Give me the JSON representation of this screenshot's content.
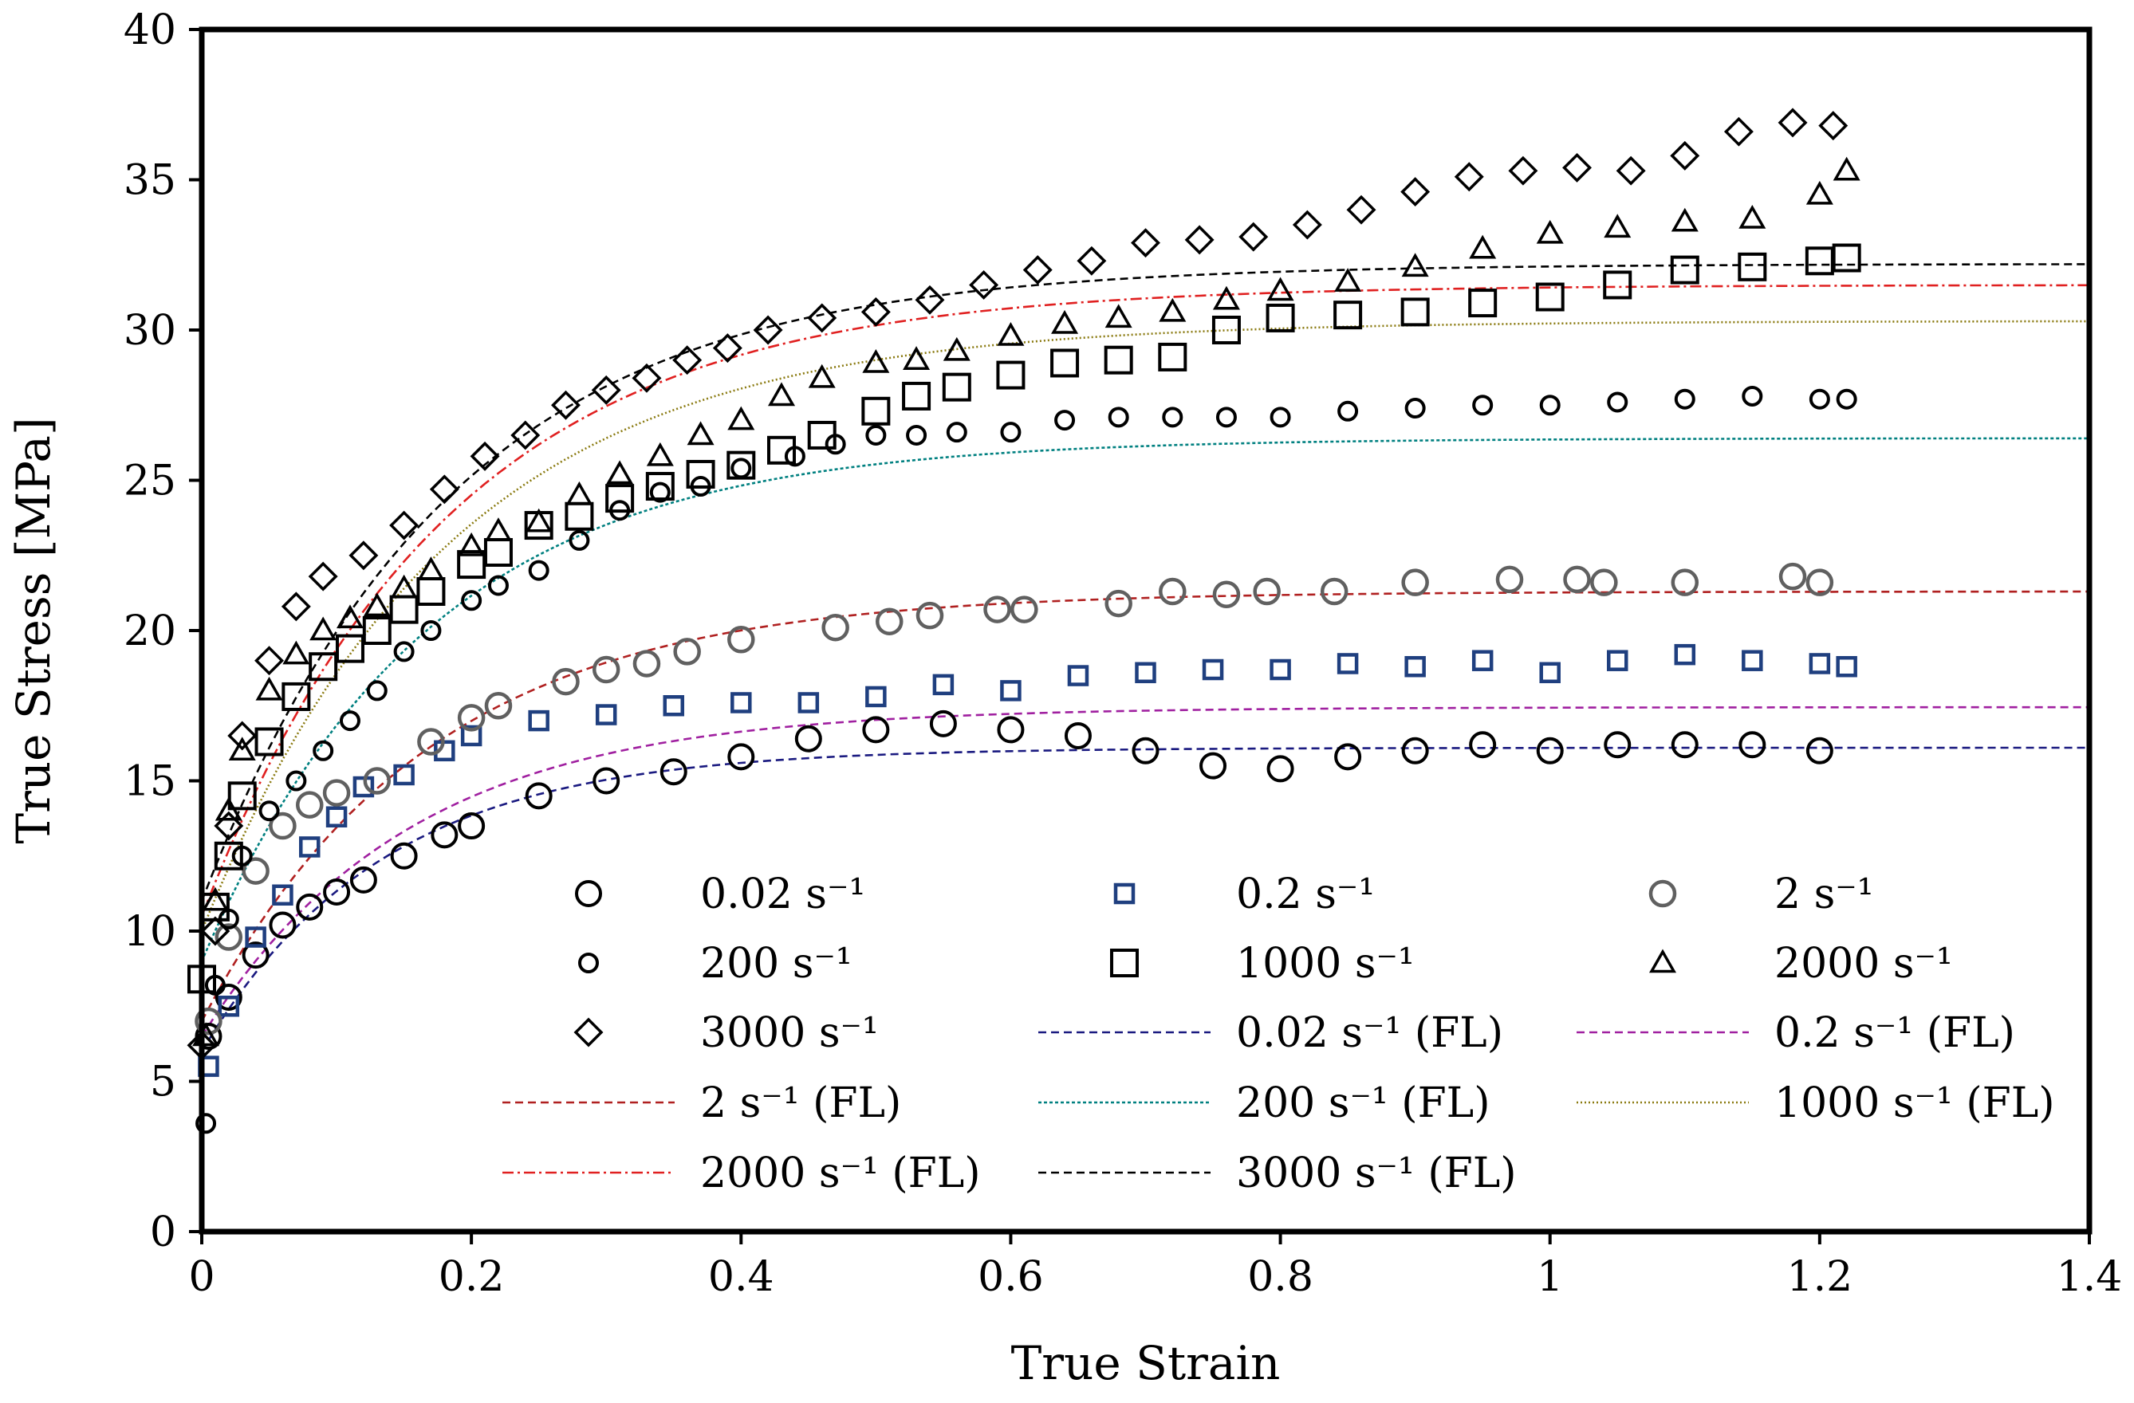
{
  "chart_data": {
    "type": "scatter",
    "xlabel": "True Strain",
    "ylabel": "True Stress [MPa]",
    "xlim": [
      0,
      1.4
    ],
    "ylim": [
      0,
      40
    ],
    "xticks": [
      "0",
      "0.2",
      "0.4",
      "0.6",
      "0.8",
      "1",
      "1.2",
      "1.4"
    ],
    "yticks": [
      "0",
      "5",
      "10",
      "15",
      "20",
      "25",
      "30",
      "35",
      "40"
    ],
    "grid": false,
    "legend_position": "inside-lower-right",
    "series": [
      {
        "name": "0.02 s⁻¹",
        "kind": "marker",
        "marker": "circle-large",
        "color": "#000000",
        "x": [
          0.005,
          0.02,
          0.04,
          0.06,
          0.08,
          0.1,
          0.12,
          0.15,
          0.18,
          0.2,
          0.25,
          0.3,
          0.35,
          0.4,
          0.45,
          0.5,
          0.55,
          0.6,
          0.65,
          0.7,
          0.75,
          0.8,
          0.85,
          0.9,
          0.95,
          1.0,
          1.05,
          1.1,
          1.15,
          1.2
        ],
        "y": [
          6.5,
          7.8,
          9.2,
          10.2,
          10.8,
          11.3,
          11.7,
          12.5,
          13.2,
          13.5,
          14.5,
          15.0,
          15.3,
          15.8,
          16.4,
          16.7,
          16.9,
          16.7,
          16.5,
          16.0,
          15.5,
          15.4,
          15.8,
          16.0,
          16.2,
          16.0,
          16.2,
          16.2,
          16.2,
          16.0
        ]
      },
      {
        "name": "0.2 s⁻¹",
        "kind": "marker",
        "marker": "square-small",
        "color": "#1f3f7f",
        "x": [
          0.005,
          0.02,
          0.04,
          0.06,
          0.08,
          0.1,
          0.12,
          0.15,
          0.18,
          0.2,
          0.25,
          0.3,
          0.35,
          0.4,
          0.45,
          0.5,
          0.55,
          0.6,
          0.65,
          0.7,
          0.75,
          0.8,
          0.85,
          0.9,
          0.95,
          1.0,
          1.05,
          1.1,
          1.15,
          1.2,
          1.22
        ],
        "y": [
          5.5,
          7.5,
          9.8,
          11.2,
          12.8,
          13.8,
          14.8,
          15.2,
          16.0,
          16.5,
          17.0,
          17.2,
          17.5,
          17.6,
          17.6,
          17.8,
          18.2,
          18.0,
          18.5,
          18.6,
          18.7,
          18.7,
          18.9,
          18.8,
          19.0,
          18.6,
          19.0,
          19.2,
          19.0,
          18.9,
          18.8
        ]
      },
      {
        "name": "2 s⁻¹",
        "kind": "marker",
        "marker": "circle-gray",
        "color": "#606060",
        "x": [
          0.005,
          0.02,
          0.04,
          0.06,
          0.08,
          0.1,
          0.13,
          0.17,
          0.2,
          0.22,
          0.27,
          0.3,
          0.33,
          0.36,
          0.4,
          0.47,
          0.51,
          0.54,
          0.59,
          0.61,
          0.68,
          0.72,
          0.76,
          0.79,
          0.84,
          0.9,
          0.97,
          1.02,
          1.04,
          1.1,
          1.18,
          1.2
        ],
        "y": [
          7.0,
          9.8,
          12.0,
          13.5,
          14.2,
          14.6,
          15.0,
          16.3,
          17.1,
          17.5,
          18.3,
          18.7,
          18.9,
          19.3,
          19.7,
          20.1,
          20.3,
          20.5,
          20.7,
          20.7,
          20.9,
          21.3,
          21.2,
          21.3,
          21.3,
          21.6,
          21.7,
          21.7,
          21.6,
          21.6,
          21.8,
          21.6
        ]
      },
      {
        "name": "200 s⁻¹",
        "kind": "marker",
        "marker": "circle-small",
        "color": "#000000",
        "x": [
          0.003,
          0.01,
          0.02,
          0.03,
          0.05,
          0.07,
          0.09,
          0.11,
          0.13,
          0.15,
          0.17,
          0.2,
          0.22,
          0.25,
          0.28,
          0.31,
          0.34,
          0.37,
          0.4,
          0.44,
          0.47,
          0.5,
          0.53,
          0.56,
          0.6,
          0.64,
          0.68,
          0.72,
          0.76,
          0.8,
          0.85,
          0.9,
          0.95,
          1.0,
          1.05,
          1.1,
          1.15,
          1.2,
          1.22
        ],
        "y": [
          3.6,
          8.2,
          10.4,
          12.5,
          14.0,
          15.0,
          16.0,
          17.0,
          18.0,
          19.3,
          20.0,
          21.0,
          21.5,
          22.0,
          23.0,
          24.0,
          24.6,
          24.8,
          25.4,
          25.8,
          26.2,
          26.5,
          26.5,
          26.6,
          26.6,
          27.0,
          27.1,
          27.1,
          27.1,
          27.1,
          27.3,
          27.4,
          27.5,
          27.5,
          27.6,
          27.7,
          27.8,
          27.7,
          27.7
        ]
      },
      {
        "name": "1000 s⁻¹",
        "kind": "marker",
        "marker": "square-large",
        "color": "#000000",
        "x": [
          0.0,
          0.01,
          0.02,
          0.03,
          0.05,
          0.07,
          0.09,
          0.11,
          0.13,
          0.15,
          0.17,
          0.2,
          0.22,
          0.25,
          0.28,
          0.31,
          0.34,
          0.37,
          0.4,
          0.43,
          0.46,
          0.5,
          0.53,
          0.56,
          0.6,
          0.64,
          0.68,
          0.72,
          0.76,
          0.8,
          0.85,
          0.9,
          0.95,
          1.0,
          1.05,
          1.1,
          1.15,
          1.2,
          1.22
        ],
        "y": [
          8.4,
          10.8,
          12.5,
          14.5,
          16.3,
          17.8,
          18.8,
          19.4,
          20.0,
          20.7,
          21.3,
          22.2,
          22.6,
          23.5,
          23.8,
          24.4,
          24.8,
          25.2,
          25.5,
          26.0,
          26.5,
          27.3,
          27.8,
          28.1,
          28.5,
          28.9,
          29.0,
          29.1,
          30.0,
          30.4,
          30.5,
          30.6,
          30.9,
          31.1,
          31.5,
          32.0,
          32.1,
          32.3,
          32.4
        ]
      },
      {
        "name": "2000 s⁻¹",
        "kind": "marker",
        "marker": "triangle",
        "color": "#000000",
        "x": [
          0.003,
          0.01,
          0.02,
          0.03,
          0.05,
          0.07,
          0.09,
          0.11,
          0.13,
          0.15,
          0.17,
          0.2,
          0.22,
          0.25,
          0.28,
          0.31,
          0.34,
          0.37,
          0.4,
          0.43,
          0.46,
          0.5,
          0.53,
          0.56,
          0.6,
          0.64,
          0.68,
          0.72,
          0.76,
          0.8,
          0.85,
          0.9,
          0.95,
          1.0,
          1.05,
          1.1,
          1.15,
          1.2,
          1.22
        ],
        "y": [
          6.5,
          11.0,
          14.0,
          16.0,
          18.0,
          19.2,
          20.0,
          20.4,
          20.8,
          21.4,
          22.0,
          22.8,
          23.3,
          23.6,
          24.5,
          25.2,
          25.8,
          26.5,
          27.0,
          27.8,
          28.4,
          28.9,
          29.0,
          29.3,
          29.8,
          30.2,
          30.4,
          30.6,
          31.0,
          31.3,
          31.6,
          32.1,
          32.7,
          33.2,
          33.4,
          33.6,
          33.7,
          34.5,
          35.3
        ]
      },
      {
        "name": "3000 s⁻¹",
        "kind": "marker",
        "marker": "diamond",
        "color": "#000000",
        "x": [
          0.0,
          0.01,
          0.02,
          0.03,
          0.05,
          0.07,
          0.09,
          0.12,
          0.15,
          0.18,
          0.21,
          0.24,
          0.27,
          0.3,
          0.33,
          0.36,
          0.39,
          0.42,
          0.46,
          0.5,
          0.54,
          0.58,
          0.62,
          0.66,
          0.7,
          0.74,
          0.78,
          0.82,
          0.86,
          0.9,
          0.94,
          0.98,
          1.02,
          1.06,
          1.1,
          1.14,
          1.18,
          1.21
        ],
        "y": [
          6.2,
          10.0,
          13.5,
          16.5,
          19.0,
          20.8,
          21.8,
          22.5,
          23.5,
          24.7,
          25.8,
          26.5,
          27.5,
          28.0,
          28.4,
          29.0,
          29.4,
          30.0,
          30.4,
          30.6,
          31.0,
          31.5,
          32.0,
          32.3,
          32.9,
          33.0,
          33.1,
          33.5,
          34.0,
          34.6,
          35.1,
          35.3,
          35.4,
          35.3,
          35.8,
          36.6,
          36.9,
          36.8
        ]
      },
      {
        "name": "0.02 s⁻¹ (FL)",
        "kind": "line",
        "dash": "10,6",
        "color": "#1a1a80",
        "A": 6.0,
        "B": 16.1,
        "k": 7.5
      },
      {
        "name": "0.2 s⁻¹ (FL)",
        "kind": "line",
        "dash": "10,6",
        "color": "#a020a0",
        "A": 6.5,
        "B": 17.45,
        "k": 6.5
      },
      {
        "name": "2 s⁻¹ (FL)",
        "kind": "line",
        "dash": "10,6",
        "color": "#b02020",
        "A": 7.0,
        "B": 21.3,
        "k": 6.0
      },
      {
        "name": "200 s⁻¹ (FL)",
        "kind": "line",
        "dash": "4,3",
        "color": "#008080",
        "A": 9.0,
        "B": 26.4,
        "k": 6.0
      },
      {
        "name": "1000 s⁻¹ (FL)",
        "kind": "line",
        "dash": "2,3",
        "color": "#8a7a10",
        "A": 10.0,
        "B": 30.3,
        "k": 5.5
      },
      {
        "name": "2000 s⁻¹ (FL)",
        "kind": "line",
        "dash": "14,5,3,5",
        "color": "#e02020",
        "A": 10.5,
        "B": 31.5,
        "k": 5.5
      },
      {
        "name": "3000 s⁻¹ (FL)",
        "kind": "line",
        "dash": "10,6",
        "color": "#000000",
        "A": 11.0,
        "B": 32.2,
        "k": 5.5
      }
    ]
  }
}
